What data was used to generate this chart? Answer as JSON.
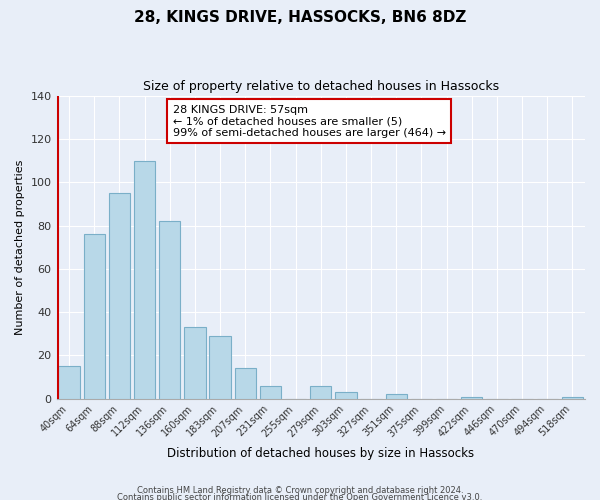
{
  "title": "28, KINGS DRIVE, HASSOCKS, BN6 8DZ",
  "subtitle": "Size of property relative to detached houses in Hassocks",
  "xlabel": "Distribution of detached houses by size in Hassocks",
  "ylabel": "Number of detached properties",
  "bar_labels": [
    "40sqm",
    "64sqm",
    "88sqm",
    "112sqm",
    "136sqm",
    "160sqm",
    "183sqm",
    "207sqm",
    "231sqm",
    "255sqm",
    "279sqm",
    "303sqm",
    "327sqm",
    "351sqm",
    "375sqm",
    "399sqm",
    "422sqm",
    "446sqm",
    "470sqm",
    "494sqm",
    "518sqm"
  ],
  "bar_values": [
    15,
    76,
    95,
    110,
    82,
    33,
    29,
    14,
    6,
    0,
    6,
    3,
    0,
    2,
    0,
    0,
    1,
    0,
    0,
    0,
    1
  ],
  "bar_color": "#b8d8e8",
  "bar_edge_color": "#7aafc8",
  "highlight_color": "#cc0000",
  "ylim": [
    0,
    140
  ],
  "yticks": [
    0,
    20,
    40,
    60,
    80,
    100,
    120,
    140
  ],
  "annotation_title": "28 KINGS DRIVE: 57sqm",
  "annotation_line1": "← 1% of detached houses are smaller (5)",
  "annotation_line2": "99% of semi-detached houses are larger (464) →",
  "footer1": "Contains HM Land Registry data © Crown copyright and database right 2024.",
  "footer2": "Contains public sector information licensed under the Open Government Licence v3.0.",
  "bg_color": "#e8eef8"
}
